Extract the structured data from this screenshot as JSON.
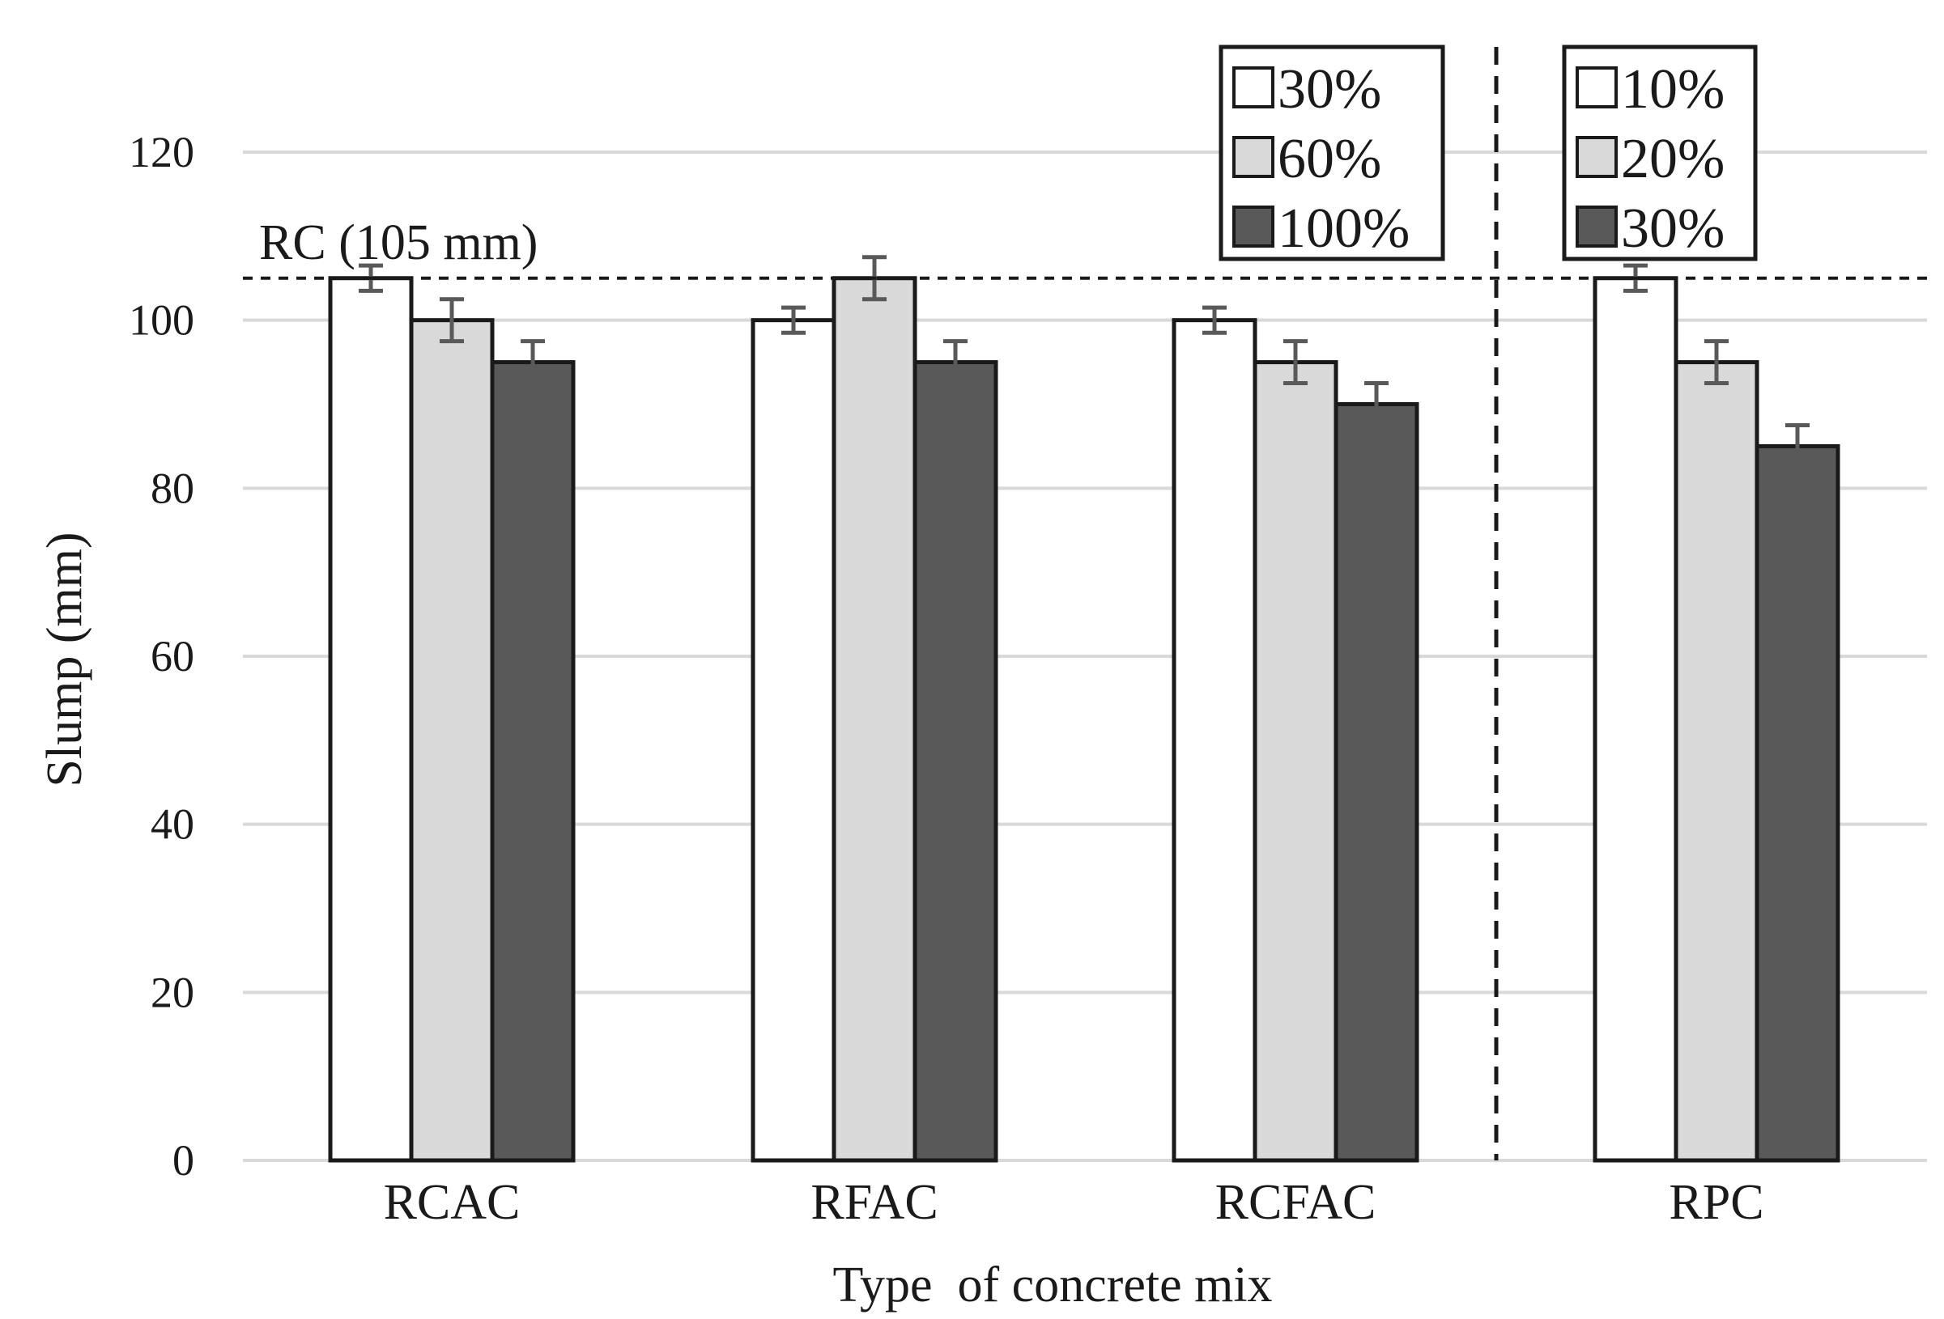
{
  "chart_data": {
    "type": "bar",
    "title": "",
    "xlabel": "Type  of concrete mix",
    "ylabel": "Slump (mm)",
    "ylim": [
      0,
      120
    ],
    "yticks": [
      0,
      20,
      40,
      60,
      80,
      100,
      120
    ],
    "grid": true,
    "reference_line": {
      "value": 105,
      "label": "RC (105 mm)"
    },
    "colors": [
      "#ffffff",
      "#d9d9d9",
      "#595959"
    ],
    "groups": [
      {
        "name": "RCAC",
        "values": [
          105,
          100,
          95
        ],
        "errors": [
          1.5,
          2.5,
          2.5
        ]
      },
      {
        "name": "RFAC",
        "values": [
          100,
          105,
          95
        ],
        "errors": [
          1.5,
          2.5,
          2.5
        ]
      },
      {
        "name": "RCFAC",
        "values": [
          100,
          95,
          90
        ],
        "errors": [
          1.5,
          2.5,
          2.5
        ]
      },
      {
        "name": "RPC",
        "values": [
          105,
          95,
          85
        ],
        "errors": [
          1.5,
          2.5,
          2.5
        ]
      }
    ],
    "legends": [
      {
        "placement": "top-center",
        "entries": [
          "30%",
          "60%",
          "100%"
        ]
      },
      {
        "placement": "top-right",
        "entries": [
          "10%",
          "20%",
          "30%"
        ]
      }
    ]
  }
}
